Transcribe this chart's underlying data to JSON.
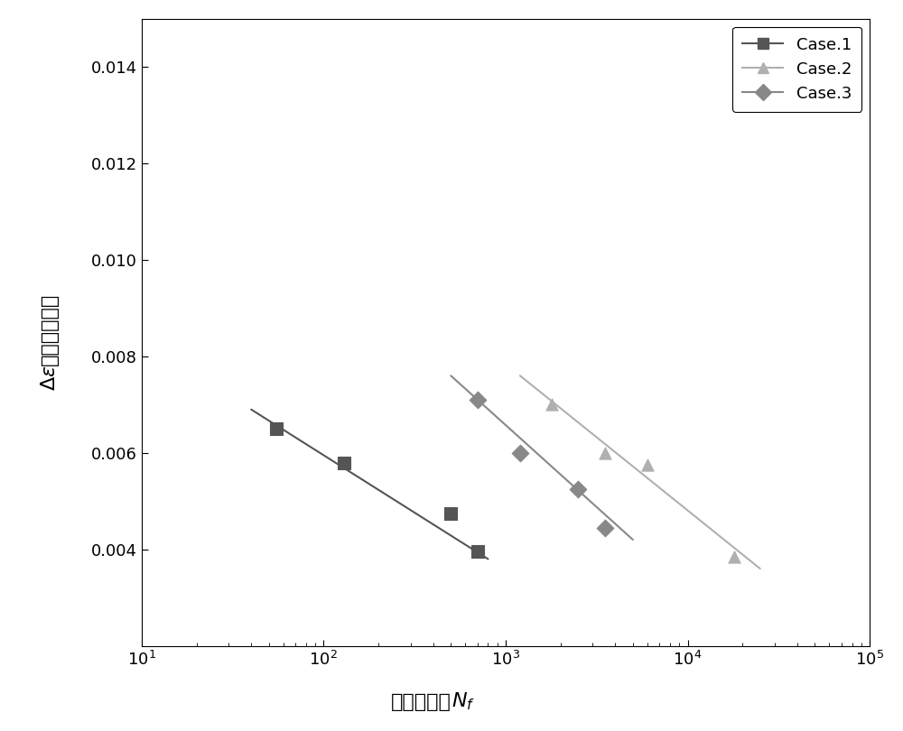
{
  "case1": {
    "x": [
      55,
      130,
      500,
      700
    ],
    "y": [
      0.0065,
      0.0058,
      0.00475,
      0.00395
    ],
    "color": "#555555",
    "label": "Case.1",
    "marker": "s",
    "line_x": [
      40,
      800
    ],
    "line_y": [
      0.0069,
      0.0038
    ]
  },
  "case2": {
    "x": [
      1800,
      3500,
      6000,
      18000
    ],
    "y": [
      0.007,
      0.006,
      0.00575,
      0.00385
    ],
    "color": "#b0b0b0",
    "label": "Case.2",
    "marker": "^",
    "line_x": [
      1200,
      25000
    ],
    "line_y": [
      0.0076,
      0.0036
    ]
  },
  "case3": {
    "x": [
      700,
      1200,
      2500,
      3500
    ],
    "y": [
      0.0071,
      0.006,
      0.00525,
      0.00445
    ],
    "color": "#888888",
    "label": "Case.3",
    "marker": "D",
    "line_x": [
      500,
      5000
    ],
    "line_y": [
      0.0076,
      0.0042
    ]
  },
  "xlabel_cn": "疲劳寿命，",
  "xlabel_math": "$N_f$",
  "ylabel_cn": "总应变幅值，",
  "ylabel_math": "$\\Delta\\varepsilon$",
  "xlim": [
    10,
    100000
  ],
  "ylim": [
    0.002,
    0.015
  ],
  "yticks": [
    0.004,
    0.006,
    0.008,
    0.01,
    0.012,
    0.014
  ],
  "xticks": [
    10,
    100,
    1000,
    10000,
    100000
  ],
  "background_color": "#ffffff",
  "legend_loc": "upper right"
}
